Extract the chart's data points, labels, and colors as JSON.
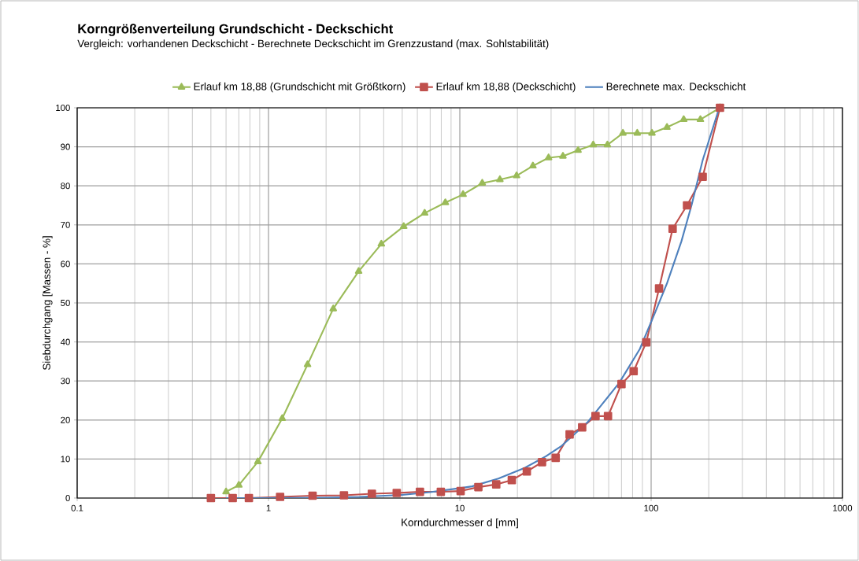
{
  "chart_data": {
    "type": "line",
    "title": "Korngrößenverteilung Grundschicht - Deckschicht",
    "subtitle": "Vergleich: vorhandenen Deckschicht - Berechnete Deckschicht im Grenzzustand (max. Sohlstabilität)",
    "xlabel": "Korndurchmesser d [mm]",
    "ylabel": "Siebdurchgang [Massen - %]",
    "series": [
      {
        "name": "Erlauf km 18,88 (Grundschicht mit Größtkorn)",
        "color": "#9bbb59",
        "marker": "triangle",
        "x": [
          0.6,
          0.7,
          0.88,
          1.18,
          1.6,
          2.18,
          2.96,
          3.89,
          5.09,
          6.55,
          8.4,
          10.4,
          13.1,
          16.2,
          19.8,
          24.1,
          29.1,
          34.6,
          41.5,
          49.8,
          59.1,
          71.2,
          84.6,
          101,
          121,
          148,
          181,
          229
        ],
        "values": [
          1.6,
          3.3,
          9.3,
          20.4,
          34.2,
          48.5,
          58.1,
          65.1,
          69.6,
          73.0,
          75.7,
          77.8,
          80.7,
          81.6,
          82.6,
          85.1,
          87.2,
          87.6,
          89.1,
          90.5,
          90.5,
          93.5,
          93.5,
          93.5,
          95.0,
          97.0,
          97.0,
          100
        ]
      },
      {
        "name": "Erlauf km 18,88 (Deckschicht)",
        "color": "#c0504d",
        "marker": "square",
        "x": [
          0.5,
          0.65,
          0.79,
          1.15,
          1.7,
          2.48,
          3.47,
          4.68,
          6.19,
          7.96,
          10.1,
          12.5,
          15.5,
          18.7,
          22.4,
          26.9,
          31.7,
          37.5,
          43.6,
          51.2,
          59.5,
          70,
          81,
          94.3,
          110,
          129.5,
          154,
          186,
          229
        ],
        "values": [
          0,
          0,
          0,
          0.3,
          0.6,
          0.7,
          1.1,
          1.3,
          1.6,
          1.6,
          1.8,
          2.8,
          3.5,
          4.6,
          6.8,
          9.2,
          10.3,
          16.3,
          18.1,
          21.0,
          21.0,
          29.2,
          32.5,
          39.9,
          53.7,
          69.0,
          75.0,
          82.3,
          100
        ]
      },
      {
        "name": "Berechnete max. Deckschicht",
        "color": "#4f81bd",
        "marker": "none",
        "x": [
          0.6,
          1,
          2,
          3,
          5,
          7,
          10.2,
          11.6,
          15.9,
          21.8,
          28.2,
          34.1,
          46.7,
          68.1,
          87.3,
          105,
          121,
          144,
          163,
          186,
          225,
          229
        ],
        "values": [
          0,
          0,
          0.1,
          0.3,
          0.8,
          1.5,
          2.6,
          3.0,
          5.0,
          7.7,
          10.7,
          13.4,
          19.5,
          29.5,
          38.2,
          47.6,
          55.0,
          65.8,
          75.2,
          86.6,
          99.4,
          100
        ]
      }
    ],
    "log": "x",
    "xlim": [
      0.1,
      1000
    ],
    "xticks": [
      0.1,
      1,
      10,
      100,
      1000
    ],
    "ylim": [
      0,
      100
    ],
    "yticks": [
      0,
      10,
      20,
      30,
      40,
      50,
      60,
      70,
      80,
      90,
      100
    ],
    "grid": true,
    "legend": "top",
    "line_style": "solid"
  }
}
